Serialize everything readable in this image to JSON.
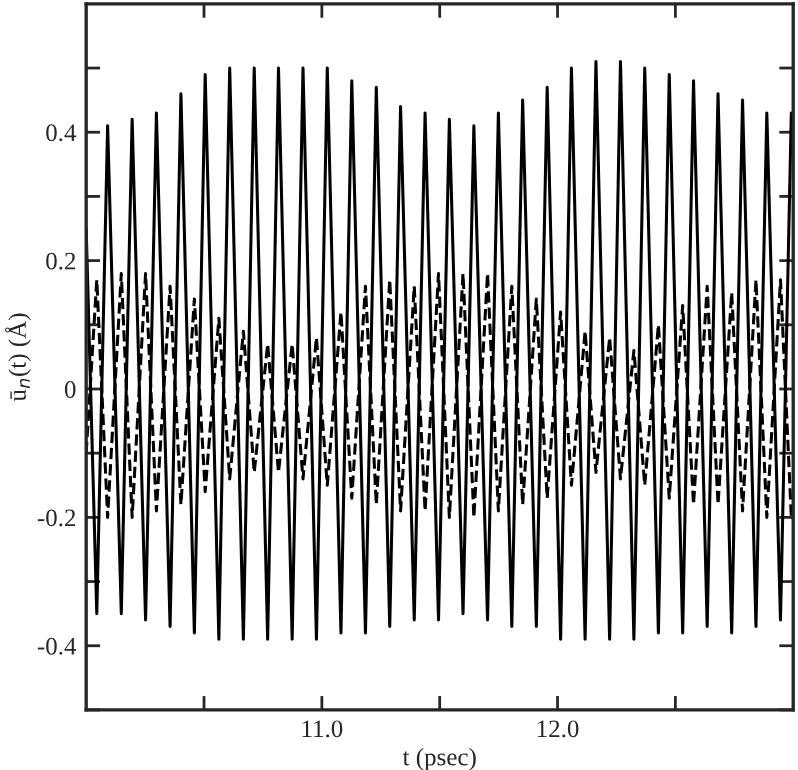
{
  "chart_data": {
    "type": "line",
    "xlabel": "t (psec)",
    "ylabel": "ū$_{n}$(t) (Å)",
    "xlim": [
      10.0,
      13.0
    ],
    "ylim": [
      -0.5,
      0.6
    ],
    "xticks": [
      {
        "value": 10.5,
        "label": null
      },
      {
        "value": 11.0,
        "label": "11.0"
      },
      {
        "value": 11.5,
        "label": null
      },
      {
        "value": 12.0,
        "label": "12.0"
      },
      {
        "value": 12.5,
        "label": null
      }
    ],
    "yticks": [
      {
        "value": -0.5,
        "label": null
      },
      {
        "value": -0.4,
        "label": "-0.4"
      },
      {
        "value": -0.3,
        "label": null
      },
      {
        "value": -0.2,
        "label": "-0.2"
      },
      {
        "value": -0.1,
        "label": null
      },
      {
        "value": 0,
        "label": "0"
      },
      {
        "value": 0.1,
        "label": null
      },
      {
        "value": 0.2,
        "label": "0.2"
      },
      {
        "value": 0.3,
        "label": null
      },
      {
        "value": 0.4,
        "label": "0.4"
      },
      {
        "value": 0.5,
        "label": null
      }
    ],
    "grid": false,
    "legend": false,
    "series": [
      {
        "color": "#000000",
        "line_style": "solid",
        "x": [
          10.0,
          10.045,
          10.091,
          10.149,
          10.195,
          10.252,
          10.298,
          10.356,
          10.402,
          10.459,
          10.505,
          10.563,
          10.609,
          10.667,
          10.713,
          10.77,
          10.816,
          10.874,
          10.92,
          10.977,
          11.023,
          11.081,
          11.127,
          11.185,
          11.231,
          11.288,
          11.334,
          11.392,
          11.438,
          11.495,
          11.541,
          11.599,
          11.645,
          11.703,
          11.749,
          11.806,
          11.852,
          11.91,
          11.956,
          12.013,
          12.059,
          12.117,
          12.163,
          12.221,
          12.267,
          12.324,
          12.37,
          12.428,
          12.474,
          12.531,
          12.577,
          12.635,
          12.681,
          12.739,
          12.785,
          12.842,
          12.888,
          12.946,
          12.992
        ],
        "values": [
          0.25,
          -0.35,
          0.41,
          -0.35,
          0.42,
          -0.36,
          0.43,
          -0.37,
          0.46,
          -0.38,
          0.49,
          -0.39,
          0.5,
          -0.39,
          0.5,
          -0.39,
          0.5,
          -0.39,
          0.5,
          -0.39,
          0.5,
          -0.38,
          0.48,
          -0.38,
          0.47,
          -0.37,
          0.44,
          -0.36,
          0.43,
          -0.36,
          0.42,
          -0.35,
          0.41,
          -0.36,
          0.43,
          -0.37,
          0.45,
          -0.37,
          0.47,
          -0.39,
          0.5,
          -0.39,
          0.51,
          -0.39,
          0.51,
          -0.39,
          0.5,
          -0.38,
          0.49,
          -0.38,
          0.48,
          -0.37,
          0.46,
          -0.38,
          0.45,
          -0.37,
          0.43,
          -0.36,
          0.43
        ]
      },
      {
        "color": "#000000",
        "line_style": "dashed",
        "x": [
          10.0,
          10.045,
          10.091,
          10.149,
          10.195,
          10.252,
          10.298,
          10.356,
          10.402,
          10.459,
          10.505,
          10.563,
          10.609,
          10.667,
          10.713,
          10.77,
          10.816,
          10.874,
          10.92,
          10.977,
          11.023,
          11.081,
          11.127,
          11.185,
          11.231,
          11.288,
          11.334,
          11.392,
          11.438,
          11.495,
          11.541,
          11.599,
          11.645,
          11.703,
          11.749,
          11.806,
          11.852,
          11.91,
          11.956,
          12.013,
          12.059,
          12.117,
          12.163,
          12.221,
          12.267,
          12.324,
          12.37,
          12.428,
          12.474,
          12.531,
          12.577,
          12.635,
          12.681,
          12.739,
          12.785,
          12.842,
          12.888,
          12.946,
          12.992
        ],
        "values": [
          -0.1,
          0.17,
          -0.2,
          0.18,
          -0.2,
          0.18,
          -0.19,
          0.16,
          -0.18,
          0.14,
          -0.16,
          0.11,
          -0.14,
          0.09,
          -0.13,
          0.07,
          -0.13,
          0.07,
          -0.14,
          0.08,
          -0.15,
          0.12,
          -0.17,
          0.16,
          -0.18,
          0.17,
          -0.19,
          0.16,
          -0.19,
          0.18,
          -0.2,
          0.18,
          -0.2,
          0.18,
          -0.19,
          0.16,
          -0.18,
          0.14,
          -0.17,
          0.12,
          -0.15,
          0.09,
          -0.13,
          0.08,
          -0.14,
          0.06,
          -0.15,
          0.1,
          -0.17,
          0.13,
          -0.18,
          0.16,
          -0.18,
          0.15,
          -0.19,
          0.17,
          -0.2,
          0.17,
          -0.2
        ]
      }
    ]
  }
}
